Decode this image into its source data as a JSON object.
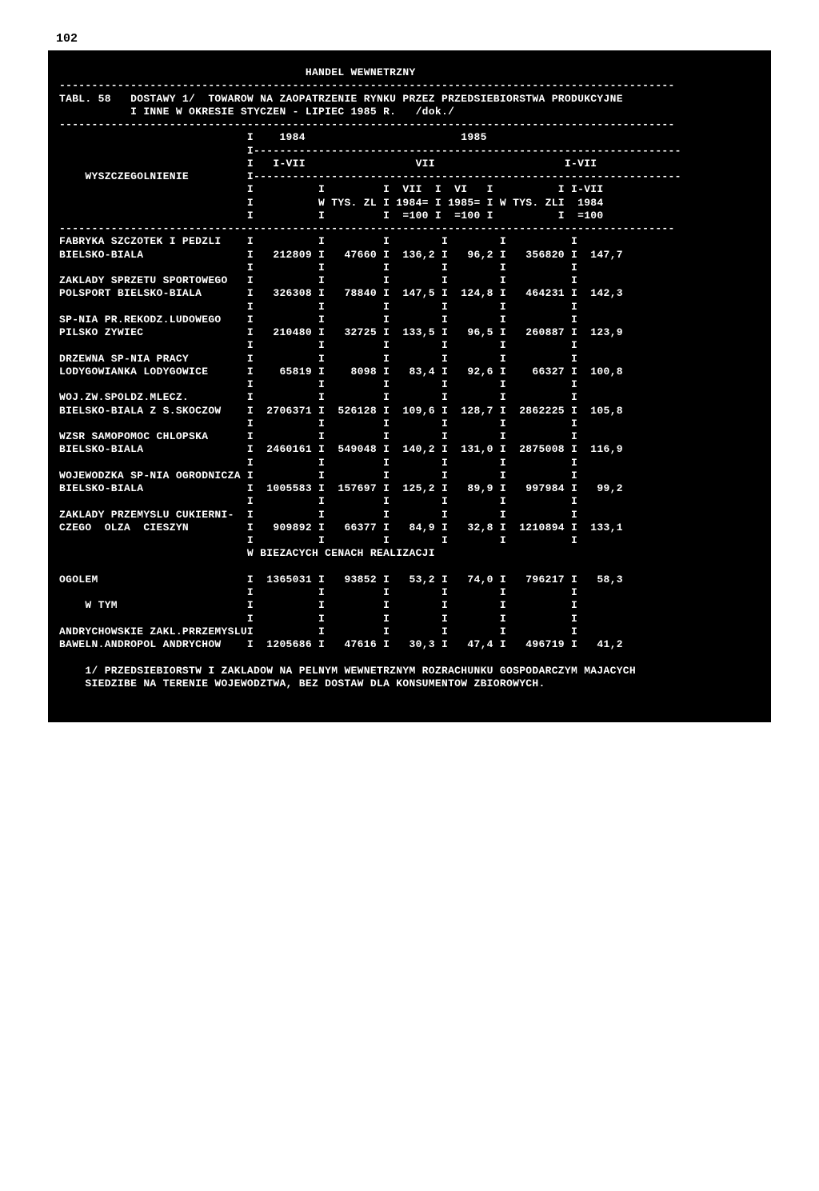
{
  "page_number": "102",
  "section_title": "HANDEL WEWNETRZNY",
  "table_caption_1": "TABL. 58   DOSTAWY 1/  TOWAROW NA ZAOPATRZENIE RYNKU PRZEZ PRZEDSIEBIORSTWA PRODUKCYJNE",
  "table_caption_2": "           I INNE W OKRESIE STYCZEN - LIPIEC 1985 R.   /dok./",
  "header": {
    "col_stub": "WYSZCZEGOLNIENIE",
    "year_1984": "1984",
    "year_1985": "1985",
    "ivii_1": "I-VII",
    "vii": "VII",
    "ivii_2": "I-VII",
    "sub_vii": "VII",
    "sub_vi": "VI",
    "sub_ivii": "I-VII",
    "unit": "W TYS. ZL",
    "u1": "1984=",
    "u2": "1985=",
    "u3": "W TYS. ZL",
    "u4": "1984",
    "u5": "=100",
    "u6": "=100",
    "u7": "=100"
  },
  "rows": [
    {
      "label1": "FABRYKA SZCZOTEK I PEDZLI",
      "label2": "BIELSKO-BIALA",
      "c1": "212809",
      "c2": "47660",
      "c3": "136,2",
      "c4": "96,2",
      "c5": "356820",
      "c6": "147,7"
    },
    {
      "label1": "ZAKLADY SPRZETU SPORTOWEGO",
      "label2": "POLSPORT BIELSKO-BIALA",
      "c1": "326308",
      "c2": "78840",
      "c3": "147,5",
      "c4": "124,8",
      "c5": "464231",
      "c6": "142,3"
    },
    {
      "label1": "SP-NIA PR.REKODZ.LUDOWEGO",
      "label2": "PILSKO ZYWIEC",
      "c1": "210480",
      "c2": "32725",
      "c3": "133,5",
      "c4": "96,5",
      "c5": "260887",
      "c6": "123,9"
    },
    {
      "label1": "DRZEWNA SP-NIA PRACY",
      "label2": "LODYGOWIANKA LODYGOWICE",
      "c1": "65819",
      "c2": "8098",
      "c3": "83,4",
      "c4": "92,6",
      "c5": "66327",
      "c6": "100,8"
    },
    {
      "label1": "WOJ.ZW.SPOLDZ.MLECZ.",
      "label2": "BIELSKO-BIALA Z S.SKOCZOW",
      "c1": "2706371",
      "c2": "526128",
      "c3": "109,6",
      "c4": "128,7",
      "c5": "2862225",
      "c6": "105,8"
    },
    {
      "label1": "WZSR SAMOPOMOC CHLOPSKA",
      "label2": "BIELSKO-BIALA",
      "c1": "2460161",
      "c2": "549048",
      "c3": "140,2",
      "c4": "131,0",
      "c5": "2875008",
      "c6": "116,9"
    },
    {
      "label1": "WOJEWODZKA SP-NIA OGRODNICZA",
      "label2": "BIELSKO-BIALA",
      "c1": "1005583",
      "c2": "157697",
      "c3": "125,2",
      "c4": "89,9",
      "c5": "997984",
      "c6": "99,2"
    },
    {
      "label1": "ZAKLADY PRZEMYSLU CUKIERNI-",
      "label2": "CZEGO  OLZA  CIESZYN",
      "c1": "909892",
      "c2": "66377",
      "c3": "84,9",
      "c4": "32,8",
      "c5": "1210894",
      "c6": "133,1"
    }
  ],
  "mid_line": "W BIEZACYCH CENACH REALIZACJI",
  "rows2": [
    {
      "label": "OGOLEM",
      "c1": "1365031",
      "c2": "93852",
      "c3": "53,2",
      "c4": "74,0",
      "c5": "796217",
      "c6": "58,3"
    },
    {
      "label": "    W TYM",
      "c1": "",
      "c2": "",
      "c3": "",
      "c4": "",
      "c5": "",
      "c6": ""
    },
    {
      "label": "",
      "c1": "",
      "c2": "",
      "c3": "",
      "c4": "",
      "c5": "",
      "c6": ""
    },
    {
      "label": "ANDRYCHOWSKIE ZAKL.PRRZEMYSLU",
      "c1": "",
      "c2": "",
      "c3": "",
      "c4": "",
      "c5": "",
      "c6": ""
    },
    {
      "label": "BAWELN.ANDROPOL ANDRYCHOW",
      "c1": "1205686",
      "c2": "47616",
      "c3": "30,3",
      "c4": "47,4",
      "c5": "496719",
      "c6": "41,2"
    }
  ],
  "footnote_1": "1/ PRZEDSIEBIORSTW I ZAKLADOW NA PELNYM WEWNETRZNYM ROZRACHUNKU GOSPODARCZYM MAJACYCH",
  "footnote_2": "SIEDZIBE NA TERENIE WOJEWODZTWA, BEZ DOSTAW DLA KONSUMENTOW ZBIOROWYCH.",
  "dash_full": "-----------------------------------------------------------------------------------------------",
  "dash_right": "                             I------------------------------------------------------------------",
  "colors": {
    "bg": "#000000",
    "fg": "#ffffff",
    "page": "#ffffff"
  }
}
